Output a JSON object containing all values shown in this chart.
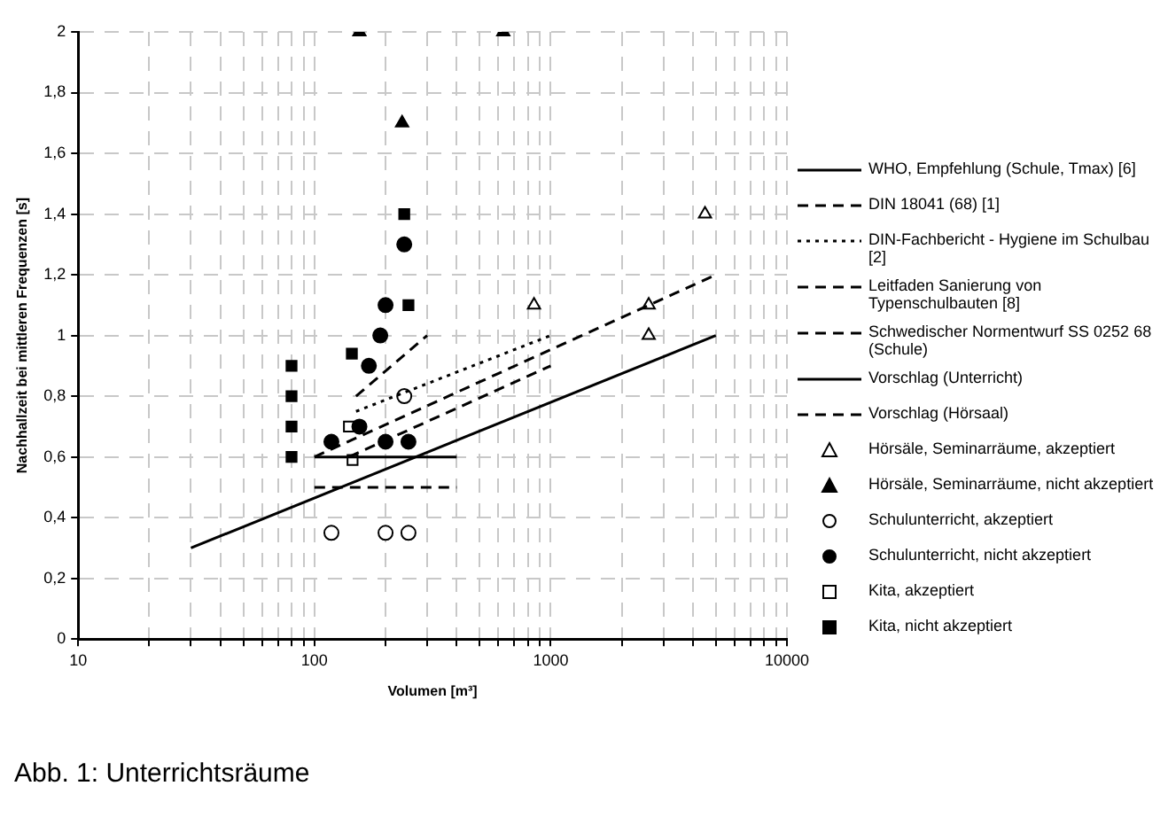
{
  "chart_data": {
    "type": "scatter",
    "xlabel": "Volumen [m³]",
    "ylabel": "Nachhallzeit bei mittleren Frequenzen [s]",
    "log": "x",
    "xlim": [
      10,
      10000
    ],
    "xticks": [
      10,
      {
        "value": 20,
        "label": null
      },
      {
        "value": 30,
        "label": null
      },
      {
        "value": 40,
        "label": null
      },
      {
        "value": 50,
        "label": null
      },
      {
        "value": 60,
        "label": null
      },
      {
        "value": 70,
        "label": null
      },
      {
        "value": 80,
        "label": null
      },
      {
        "value": 90,
        "label": null
      },
      100,
      {
        "value": 200,
        "label": null
      },
      {
        "value": 300,
        "label": null
      },
      {
        "value": 400,
        "label": null
      },
      {
        "value": 500,
        "label": null
      },
      {
        "value": 600,
        "label": null
      },
      {
        "value": 700,
        "label": null
      },
      {
        "value": 800,
        "label": null
      },
      {
        "value": 900,
        "label": null
      },
      1000,
      {
        "value": 2000,
        "label": null
      },
      {
        "value": 3000,
        "label": null
      },
      {
        "value": 4000,
        "label": null
      },
      {
        "value": 5000,
        "label": null
      },
      {
        "value": 6000,
        "label": null
      },
      {
        "value": 7000,
        "label": null
      },
      {
        "value": 8000,
        "label": null
      },
      {
        "value": 9000,
        "label": null
      },
      10000
    ],
    "ylim": [
      0,
      2
    ],
    "yticks": [
      0,
      {
        "value": 0.2,
        "label": "0,2"
      },
      {
        "value": 0.4,
        "label": "0,4"
      },
      {
        "value": 0.6,
        "label": "0,6"
      },
      {
        "value": 0.8,
        "label": "0,8"
      },
      1,
      {
        "value": 1.2,
        "label": "1,2"
      },
      {
        "value": 1.4,
        "label": "1,4"
      },
      {
        "value": 1.6,
        "label": "1,6"
      },
      {
        "value": 1.8,
        "label": "1,8"
      },
      2
    ],
    "grid": true,
    "legend": "right",
    "annotations": [
      "Abb. 1: Unterrichtsräume"
    ],
    "series": [
      {
        "name": "WHO, Empfehlung (Schule, Tmax) [6]",
        "type": "line",
        "line_style": "solid",
        "marker": "none",
        "color": "#000000",
        "x": [
          100,
          400
        ],
        "values": [
          0.6,
          0.6
        ]
      },
      {
        "name": "DIN 18041 (68) [1]",
        "type": "line",
        "line_style": "dashed",
        "marker": "none",
        "color": "#000000",
        "x": [
          140,
          1000
        ],
        "values": [
          0.6,
          0.9
        ]
      },
      {
        "name": "DIN-Fachbericht - Hygiene im Schulbau [2]",
        "type": "line",
        "line_style": "dotted",
        "marker": "none",
        "color": "#000000",
        "x": [
          150,
          1000
        ],
        "values": [
          0.75,
          1.0
        ]
      },
      {
        "name": "Leitfaden Sanierung von Typenschulbauten [8]",
        "type": "line",
        "line_style": "dashed",
        "marker": "none",
        "color": "#000000",
        "x": [
          150,
          300
        ],
        "values": [
          0.8,
          1.0
        ]
      },
      {
        "name": "Schwedischer Normentwurf SS 0252 68 (Schule)",
        "type": "line",
        "line_style": "dashed",
        "marker": "none",
        "color": "#000000",
        "x": [
          100,
          400
        ],
        "values": [
          0.5,
          0.5
        ]
      },
      {
        "name": "Vorschlag (Unterricht)",
        "type": "line",
        "line_style": "solid",
        "marker": "none",
        "color": "#000000",
        "x": [
          30,
          5000
        ],
        "values": [
          0.3,
          1.0
        ]
      },
      {
        "name": "Vorschlag (Hörsaal)",
        "type": "line",
        "line_style": "dashed",
        "marker": "none",
        "color": "#000000",
        "x": [
          100,
          5000
        ],
        "values": [
          0.6,
          1.2
        ]
      },
      {
        "name": "Hörsäle, Seminarräume, akzeptiert",
        "type": "scatter",
        "marker": "triangle",
        "color": "#ffffff",
        "x": [
          850,
          2600,
          2600,
          4500
        ],
        "values": [
          1.1,
          1.1,
          1.0,
          1.4
        ]
      },
      {
        "name": "Hörsäle, Seminarräume, nicht akzeptiert",
        "type": "scatter",
        "marker": "triangle",
        "color": "#000000",
        "x": [
          155,
          630,
          235
        ],
        "values": [
          2.0,
          2.0,
          1.7
        ]
      },
      {
        "name": "Schulunterricht, akzeptiert",
        "type": "scatter",
        "marker": "circle",
        "color": "#ffffff",
        "x": [
          118,
          200,
          250,
          240
        ],
        "values": [
          0.35,
          0.35,
          0.35,
          0.8
        ]
      },
      {
        "name": "Schulunterricht, nicht akzeptiert",
        "type": "scatter",
        "marker": "circle",
        "color": "#000000",
        "x": [
          240,
          200,
          190,
          170,
          155,
          118,
          200,
          250
        ],
        "values": [
          1.3,
          1.1,
          1.0,
          0.9,
          0.7,
          0.65,
          0.65,
          0.65
        ]
      },
      {
        "name": "Kita, akzeptiert",
        "type": "scatter",
        "marker": "square",
        "color": "#ffffff",
        "x": [
          140,
          145
        ],
        "values": [
          0.7,
          0.59
        ]
      },
      {
        "name": "Kita, nicht akzeptiert",
        "type": "scatter",
        "marker": "square",
        "color": "#000000",
        "x": [
          80,
          80,
          80,
          80,
          144,
          240,
          250
        ],
        "values": [
          0.9,
          0.8,
          0.7,
          0.6,
          0.94,
          1.4,
          1.1
        ]
      }
    ]
  }
}
